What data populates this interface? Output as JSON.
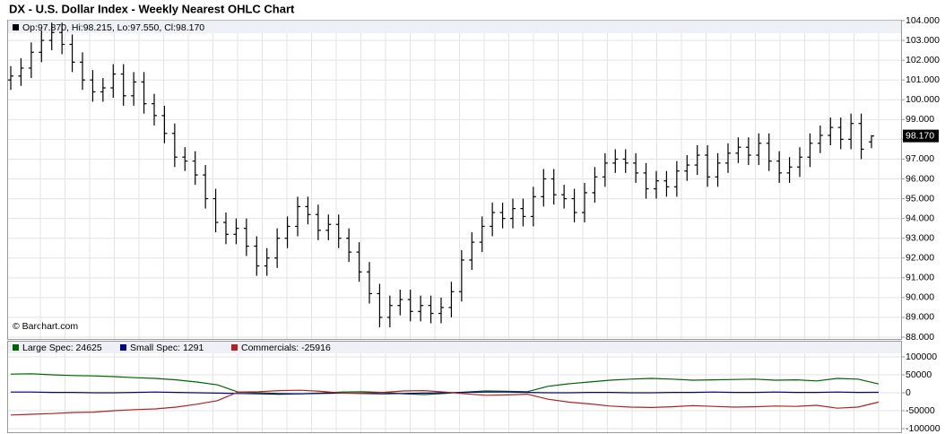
{
  "title": "DX - U.S. Dollar Index - Weekly Nearest OHLC Chart",
  "chart_data": [
    {
      "type": "ohlc",
      "ohlc_label": "Op:97.870, Hi:98.215, Lo:97.550, Cl:98.170",
      "watermark": "© Barchart.com",
      "last_label": "98.170",
      "color": "#000000",
      "grid": true,
      "open": [
        101.0,
        101.2,
        101.6,
        102.4,
        103.0,
        103.4,
        102.8,
        101.9,
        101.0,
        100.4,
        100.6,
        101.3,
        100.2,
        100.9,
        99.8,
        99.2,
        98.3,
        97.1,
        96.9,
        96.2,
        95.0,
        93.8,
        93.2,
        93.5,
        92.6,
        91.6,
        92.0,
        93.0,
        93.6,
        94.6,
        94.2,
        93.4,
        93.7,
        93.0,
        92.3,
        91.3,
        90.2,
        89.0,
        89.6,
        89.9,
        89.3,
        89.6,
        89.2,
        89.5,
        90.3,
        91.9,
        92.8,
        93.6,
        94.3,
        94.0,
        94.5,
        94.1,
        95.1,
        96.0,
        95.2,
        95.0,
        94.3,
        95.3,
        96.1,
        96.8,
        97.0,
        96.8,
        96.3,
        95.5,
        95.9,
        95.6,
        96.4,
        96.7,
        97.2,
        96.1,
        96.8,
        97.3,
        97.6,
        97.2,
        97.8,
        96.9,
        96.3,
        96.6,
        97.1,
        97.8,
        98.2,
        98.6,
        98.0,
        98.8,
        97.87
      ],
      "high": [
        101.7,
        102.1,
        102.9,
        103.5,
        103.9,
        103.9,
        103.3,
        102.4,
        101.5,
        101.1,
        101.8,
        101.8,
        101.4,
        101.4,
        100.3,
        99.7,
        98.8,
        97.6,
        97.4,
        96.7,
        95.5,
        94.3,
        94.0,
        94.0,
        93.1,
        92.5,
        93.5,
        94.1,
        95.1,
        95.1,
        94.7,
        94.2,
        94.2,
        93.5,
        92.8,
        91.8,
        90.7,
        90.1,
        90.4,
        90.4,
        90.1,
        90.1,
        90.0,
        90.8,
        92.4,
        93.3,
        94.1,
        94.8,
        94.8,
        95.0,
        95.0,
        95.6,
        96.5,
        96.5,
        95.7,
        95.5,
        95.8,
        96.6,
        97.3,
        97.5,
        97.5,
        97.3,
        96.8,
        96.4,
        96.4,
        96.9,
        97.2,
        97.7,
        97.7,
        97.3,
        97.8,
        98.1,
        98.1,
        98.3,
        98.3,
        97.4,
        97.1,
        97.6,
        98.3,
        98.7,
        99.1,
        99.1,
        99.3,
        99.3,
        98.215
      ],
      "low": [
        100.5,
        100.7,
        101.1,
        101.9,
        102.5,
        102.3,
        101.4,
        100.5,
        99.9,
        99.9,
        100.1,
        99.7,
        99.7,
        99.3,
        98.7,
        97.8,
        96.6,
        96.4,
        95.7,
        94.5,
        93.3,
        92.7,
        92.7,
        92.1,
        91.1,
        91.1,
        91.5,
        92.5,
        93.1,
        93.7,
        92.9,
        92.9,
        92.5,
        91.8,
        90.8,
        89.7,
        88.5,
        88.5,
        89.1,
        88.8,
        88.8,
        88.7,
        88.7,
        89.0,
        89.8,
        91.4,
        92.3,
        93.1,
        93.5,
        93.5,
        93.6,
        93.6,
        94.6,
        94.7,
        94.5,
        93.8,
        93.8,
        94.8,
        95.6,
        96.3,
        96.3,
        95.8,
        95.0,
        95.0,
        95.1,
        95.1,
        95.9,
        96.2,
        95.6,
        95.6,
        96.3,
        96.8,
        96.7,
        96.7,
        96.4,
        95.8,
        95.8,
        96.1,
        96.6,
        97.3,
        97.7,
        97.5,
        97.5,
        97.0,
        97.55
      ],
      "close": [
        101.2,
        101.6,
        102.4,
        103.0,
        103.4,
        102.8,
        101.9,
        101.0,
        100.4,
        100.6,
        101.3,
        100.2,
        100.9,
        99.8,
        99.2,
        98.3,
        97.1,
        96.9,
        96.2,
        95.0,
        93.8,
        93.2,
        93.5,
        92.6,
        91.6,
        92.0,
        93.0,
        93.6,
        94.6,
        94.2,
        93.4,
        93.7,
        93.0,
        92.3,
        91.3,
        90.2,
        89.0,
        89.6,
        89.9,
        89.3,
        89.6,
        89.2,
        89.5,
        90.3,
        91.9,
        92.8,
        93.6,
        94.3,
        94.0,
        94.5,
        94.1,
        95.1,
        96.0,
        95.2,
        95.0,
        94.3,
        95.3,
        96.1,
        96.8,
        97.0,
        96.8,
        96.3,
        95.5,
        95.9,
        95.6,
        96.4,
        96.7,
        97.2,
        96.1,
        96.8,
        97.3,
        97.6,
        97.2,
        97.8,
        96.9,
        96.3,
        96.6,
        97.1,
        97.8,
        98.2,
        98.6,
        98.0,
        98.8,
        97.5,
        98.17
      ],
      "ylim": [
        88,
        104
      ],
      "yticks": [
        {
          "value": 88,
          "label": "88.000"
        },
        {
          "value": 89,
          "label": "89.000"
        },
        {
          "value": 90,
          "label": "90.000"
        },
        {
          "value": 91,
          "label": "91.000"
        },
        {
          "value": 92,
          "label": "92.000"
        },
        {
          "value": 93,
          "label": "93.000"
        },
        {
          "value": 94,
          "label": "94.000"
        },
        {
          "value": 95,
          "label": "95.000"
        },
        {
          "value": 96,
          "label": "96.000"
        },
        {
          "value": 97,
          "label": "97.000"
        },
        {
          "value": 98,
          "label": "98.000"
        },
        {
          "value": 99,
          "label": "99.000"
        },
        {
          "value": 100,
          "label": "100.000"
        },
        {
          "value": 101,
          "label": "101.000"
        },
        {
          "value": 102,
          "label": "102.000"
        },
        {
          "value": 103,
          "label": "103.000"
        },
        {
          "value": 104,
          "label": "104.000"
        }
      ]
    },
    {
      "type": "line",
      "grid": true,
      "series": [
        {
          "name": "Large Spec: 24625",
          "color": "#006400",
          "values": [
            52000,
            53000,
            50000,
            48000,
            47000,
            45000,
            42000,
            40000,
            36000,
            30000,
            22000,
            2000,
            0,
            -2000,
            -3000,
            -1000,
            2000,
            3000,
            1000,
            -3000,
            -5000,
            -2000,
            2000,
            5000,
            4000,
            3000,
            18000,
            25000,
            30000,
            35000,
            38000,
            40000,
            38000,
            35000,
            36000,
            37000,
            38000,
            35000,
            36000,
            33000,
            40000,
            38000,
            24625
          ]
        },
        {
          "name": "Small Spec: 1291",
          "color": "#00008b",
          "values": [
            2000,
            2000,
            1000,
            1000,
            0,
            0,
            1000,
            2000,
            1000,
            0,
            -1000,
            -2000,
            -3000,
            -4000,
            -3000,
            -2000,
            -1000,
            -2000,
            -3000,
            -2000,
            -1000,
            0,
            1000,
            2000,
            2000,
            1000,
            0,
            0,
            1000,
            1000,
            0,
            0,
            1000,
            1000,
            2000,
            1000,
            1000,
            2000,
            1000,
            1000,
            2000,
            1000,
            1291
          ]
        },
        {
          "name": "Commercials: -25916",
          "color": "#b22222",
          "values": [
            -62000,
            -60000,
            -58000,
            -55000,
            -54000,
            -50000,
            -47000,
            -45000,
            -40000,
            -32000,
            -22000,
            2000,
            3000,
            6000,
            7000,
            4000,
            -1000,
            -1000,
            1000,
            5000,
            6000,
            2000,
            -3000,
            -7000,
            -6000,
            -4000,
            -18000,
            -26000,
            -31000,
            -37000,
            -40000,
            -41000,
            -39000,
            -36000,
            -38000,
            -40000,
            -39000,
            -37000,
            -38000,
            -35000,
            -43000,
            -40000,
            -25916
          ]
        }
      ],
      "ylim": [
        -100000,
        100000
      ],
      "yticks": [
        -100000,
        -50000,
        0,
        50000,
        100000
      ]
    }
  ]
}
